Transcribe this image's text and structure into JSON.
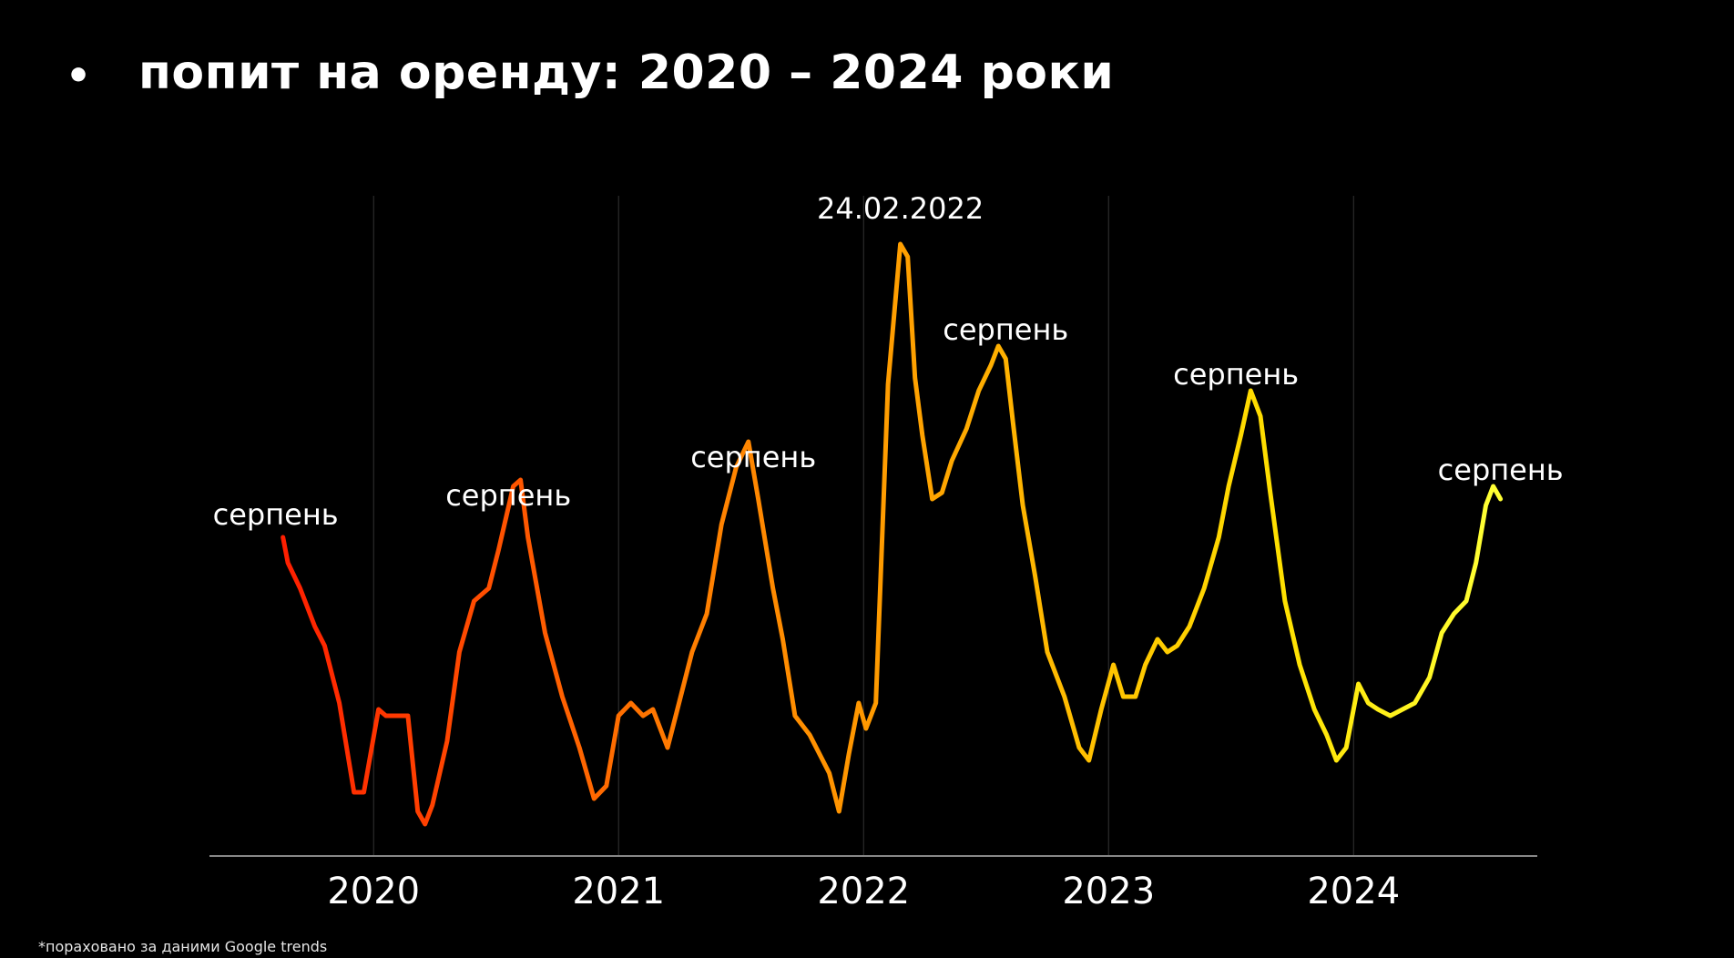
{
  "title": {
    "bullet": "•",
    "text": "попит на оренду: 2020 – 2024 роки"
  },
  "footnote": "*пораховано за даними Google trends",
  "colors": {
    "background": "#000000",
    "grid": "#333333",
    "axis": "#888888",
    "gradient": [
      "#ff1a00",
      "#ff4a00",
      "#ff7a00",
      "#ff9a00",
      "#ffbe00",
      "#ffe000",
      "#ffff33"
    ]
  },
  "chart_data": {
    "type": "line",
    "title": "попит на оренду: 2020 – 2024 роки",
    "xlabel": "",
    "ylabel": "",
    "x_ticks": [
      "2020",
      "2021",
      "2022",
      "2023",
      "2024"
    ],
    "grid": "vertical lines at each year",
    "xlim": [
      2019.33,
      2024.75
    ],
    "ylim": [
      0,
      100
    ],
    "annotations": [
      {
        "text": "серпень",
        "x": 2019.6,
        "y": 52
      },
      {
        "text": "серпень",
        "x": 2020.55,
        "y": 55
      },
      {
        "text": "серпень",
        "x": 2021.55,
        "y": 61
      },
      {
        "text": "24.02.2022",
        "x": 2022.15,
        "y": 100
      },
      {
        "text": "серпень",
        "x": 2022.58,
        "y": 81
      },
      {
        "text": "серпень",
        "x": 2023.52,
        "y": 74
      },
      {
        "text": "серпень",
        "x": 2024.6,
        "y": 59
      }
    ],
    "series": [
      {
        "values": [
          [
            2019.63,
            50
          ],
          [
            2019.65,
            46
          ],
          [
            2019.7,
            42
          ],
          [
            2019.76,
            36
          ],
          [
            2019.8,
            33
          ],
          [
            2019.86,
            24
          ],
          [
            2019.92,
            10
          ],
          [
            2019.96,
            10
          ],
          [
            2020.02,
            23
          ],
          [
            2020.05,
            22
          ],
          [
            2020.09,
            22
          ],
          [
            2020.14,
            22
          ],
          [
            2020.18,
            7
          ],
          [
            2020.21,
            5
          ],
          [
            2020.24,
            8
          ],
          [
            2020.3,
            18
          ],
          [
            2020.35,
            32
          ],
          [
            2020.41,
            40
          ],
          [
            2020.47,
            42
          ],
          [
            2020.51,
            48
          ],
          [
            2020.57,
            58
          ],
          [
            2020.6,
            59
          ],
          [
            2020.63,
            50
          ],
          [
            2020.7,
            35
          ],
          [
            2020.77,
            25
          ],
          [
            2020.84,
            17
          ],
          [
            2020.9,
            9
          ],
          [
            2020.95,
            11
          ],
          [
            2021.0,
            22
          ],
          [
            2021.05,
            24
          ],
          [
            2021.1,
            22
          ],
          [
            2021.14,
            23
          ],
          [
            2021.2,
            17
          ],
          [
            2021.24,
            23
          ],
          [
            2021.3,
            32
          ],
          [
            2021.36,
            38
          ],
          [
            2021.42,
            52
          ],
          [
            2021.48,
            61
          ],
          [
            2021.53,
            65
          ],
          [
            2021.57,
            56
          ],
          [
            2021.63,
            42
          ],
          [
            2021.67,
            34
          ],
          [
            2021.72,
            22
          ],
          [
            2021.78,
            19
          ],
          [
            2021.86,
            13
          ],
          [
            2021.9,
            7
          ],
          [
            2021.94,
            16
          ],
          [
            2021.98,
            24
          ],
          [
            2022.01,
            20
          ],
          [
            2022.05,
            24
          ],
          [
            2022.1,
            74
          ],
          [
            2022.15,
            96
          ],
          [
            2022.18,
            94
          ],
          [
            2022.21,
            75
          ],
          [
            2022.24,
            66
          ],
          [
            2022.28,
            56
          ],
          [
            2022.32,
            57
          ],
          [
            2022.36,
            62
          ],
          [
            2022.42,
            67
          ],
          [
            2022.47,
            73
          ],
          [
            2022.52,
            77
          ],
          [
            2022.55,
            80
          ],
          [
            2022.58,
            78
          ],
          [
            2022.61,
            68
          ],
          [
            2022.65,
            55
          ],
          [
            2022.7,
            44
          ],
          [
            2022.75,
            32
          ],
          [
            2022.82,
            25
          ],
          [
            2022.88,
            17
          ],
          [
            2022.92,
            15
          ],
          [
            2022.97,
            23
          ],
          [
            2023.02,
            30
          ],
          [
            2023.06,
            25
          ],
          [
            2023.11,
            25
          ],
          [
            2023.15,
            30
          ],
          [
            2023.2,
            34
          ],
          [
            2023.24,
            32
          ],
          [
            2023.28,
            33
          ],
          [
            2023.33,
            36
          ],
          [
            2023.39,
            42
          ],
          [
            2023.45,
            50
          ],
          [
            2023.49,
            58
          ],
          [
            2023.54,
            66
          ],
          [
            2023.58,
            73
          ],
          [
            2023.62,
            69
          ],
          [
            2023.66,
            57
          ],
          [
            2023.72,
            40
          ],
          [
            2023.78,
            30
          ],
          [
            2023.84,
            23
          ],
          [
            2023.89,
            19
          ],
          [
            2023.93,
            15
          ],
          [
            2023.97,
            17
          ],
          [
            2024.02,
            27
          ],
          [
            2024.06,
            24
          ],
          [
            2024.1,
            23
          ],
          [
            2024.15,
            22
          ],
          [
            2024.2,
            23
          ],
          [
            2024.25,
            24
          ],
          [
            2024.31,
            28
          ],
          [
            2024.36,
            35
          ],
          [
            2024.41,
            38
          ],
          [
            2024.46,
            40
          ],
          [
            2024.5,
            46
          ],
          [
            2024.54,
            55
          ],
          [
            2024.57,
            58
          ],
          [
            2024.6,
            56
          ]
        ]
      }
    ]
  }
}
